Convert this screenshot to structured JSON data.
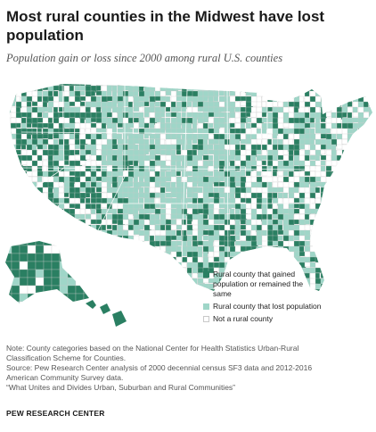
{
  "title": "Most rural counties in the Midwest have lost population",
  "subtitle": "Population gain or loss since 2000 among rural U.S. counties",
  "colors": {
    "gained": "#2a7f62",
    "lost": "#9fd6c8",
    "not_rural": "#ffffff",
    "border": "#c9c9c9"
  },
  "legend": [
    {
      "key": "gained",
      "label": "Rural county that gained population or remained the same",
      "icon": "square-swatch"
    },
    {
      "key": "lost",
      "label": "Rural county that lost population",
      "icon": "square-swatch"
    },
    {
      "key": "not_rural",
      "label": "Not a rural county",
      "icon": "square-swatch"
    }
  ],
  "notes": [
    "Note: County categories based on the National Center for Health Statistics Urban-Rural",
    "Classification Scheme for Counties.",
    "Source: Pew Research Center analysis of 2000 decennial census SF3 data and 2012-2016",
    "American Community Survey data.",
    "“What Unites and Divides Urban, Suburban and Rural Communities”"
  ],
  "credit": "PEW RESEARCH CENTER"
}
